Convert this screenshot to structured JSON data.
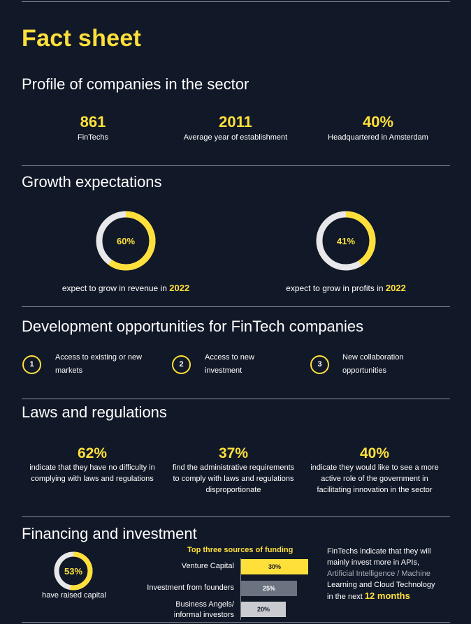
{
  "header": {
    "title": "Fact sheet"
  },
  "profile": {
    "title": "Profile of companies in the sector",
    "stats": [
      {
        "value": "861",
        "label": "FinTechs"
      },
      {
        "value": "2011",
        "label": "Average year of establishment"
      },
      {
        "value": "40%",
        "label": "Headquartered in Amsterdam"
      }
    ]
  },
  "growth": {
    "title": "Growth expectations",
    "items": [
      {
        "value": "60%",
        "percent": 60,
        "label": "expect to grow in revenue in",
        "year": "2022"
      },
      {
        "value": "41%",
        "percent": 41,
        "label": "expect to grow in profits in",
        "year": "2022"
      }
    ]
  },
  "development": {
    "title": "Development opportunities for FinTech companies",
    "items": [
      {
        "num": "1",
        "line1": "Access to existing or new",
        "line2": "markets"
      },
      {
        "num": "2",
        "line1": "Access to new",
        "line2": "investment"
      },
      {
        "num": "3",
        "line1": "New collaboration",
        "line2": "opportunities"
      }
    ]
  },
  "laws": {
    "title": "Laws and regulations",
    "items": [
      {
        "value": "62%",
        "line1": "indicate that they have no difficulty in",
        "line2": "complying with laws and regulations",
        "line3": ""
      },
      {
        "value": "37%",
        "line1": "find the administrative requirements",
        "line2": "to comply with laws and regulations",
        "line3": "disproportionate"
      },
      {
        "value": "40%",
        "line1": "indicate they would like to see a more",
        "line2": "active role of the government in",
        "line3": "facilitating innovation in the sector"
      }
    ]
  },
  "financing": {
    "title": "Financing and investment",
    "raised": {
      "value": "53%",
      "percent": 53,
      "label": "have raised capital"
    },
    "funding_title": "Top three sources of funding",
    "invest": {
      "line1": "FinTechs indicate that they will",
      "line2": "mainly invest more in APIs,",
      "line3": "Artificial Intelligence / Machine",
      "line4": "Learning and Cloud Technology",
      "line5_prefix": "in the next",
      "line5_highlight": "12 months"
    }
  },
  "chart_data": {
    "type": "bar",
    "title": "Top three sources of funding",
    "categories": [
      "Venture Capital",
      "Investment from founders",
      "Business Angels/ informal investors"
    ],
    "category_lines": [
      [
        "Venture Capital"
      ],
      [
        "Investment from founders"
      ],
      [
        "Business Angels/",
        "informal investors"
      ]
    ],
    "values": [
      30,
      25,
      20
    ],
    "value_labels": [
      "30%",
      "25%",
      "20%"
    ],
    "bar_colors": [
      "#ffe03b",
      "#6b7280",
      "#c9cbd0"
    ],
    "orientation": "horizontal"
  }
}
